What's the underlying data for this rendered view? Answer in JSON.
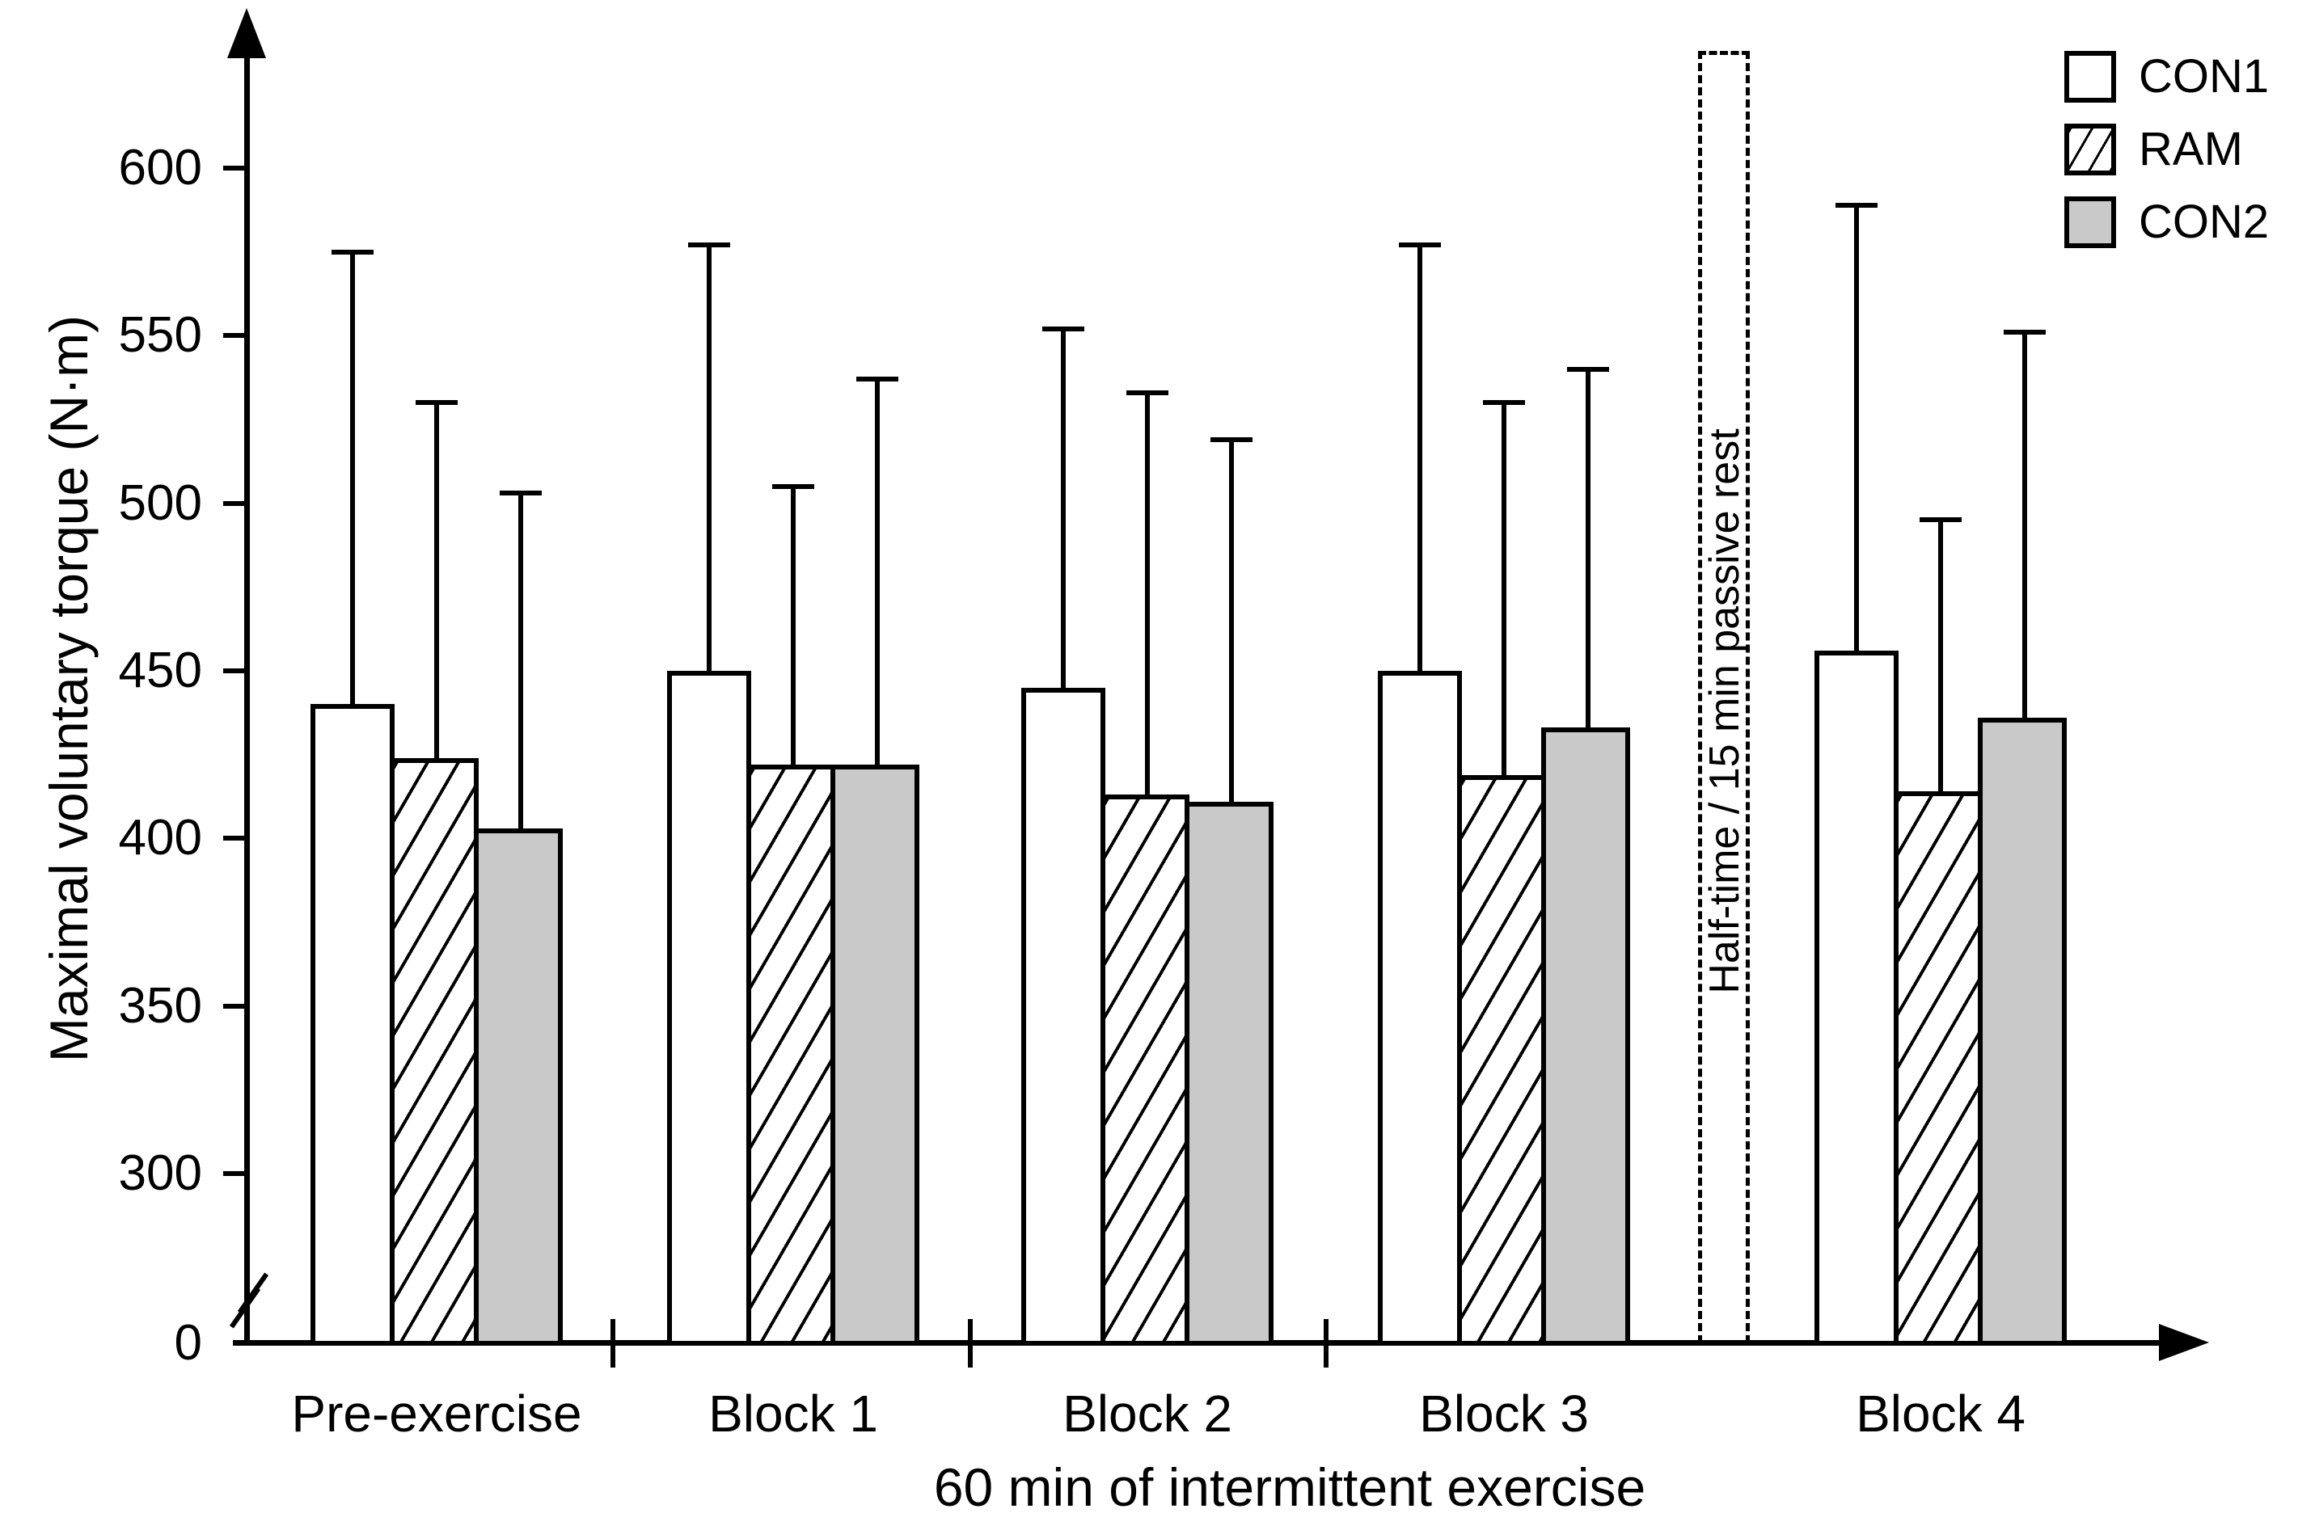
{
  "figure": {
    "y_axis": {
      "title": "Maximal voluntary torque (N·m)",
      "tick_labels": [
        "600",
        "550",
        "500",
        "450",
        "400",
        "350",
        "300"
      ],
      "zero_label": "0",
      "has_axis_break": true
    },
    "x_axis": {
      "title": "60 min of intermittent exercise",
      "categories": [
        "Pre-exercise",
        "Block 1",
        "Block 2",
        "Block 3",
        "Block 4"
      ]
    },
    "legend": [
      {
        "label": "CON1",
        "style": "white"
      },
      {
        "label": "RAM",
        "style": "hatched"
      },
      {
        "label": "CON2",
        "style": "gray"
      }
    ],
    "annotation": {
      "half_time_label": "Half-time / 15 min passive rest"
    },
    "colors": {
      "ink": "#000000",
      "con2_gray": "#c9c9c9",
      "background": "#ffffff"
    }
  },
  "chart_data": {
    "type": "bar",
    "title": "",
    "xlabel": "60 min of intermittent exercise",
    "ylabel": "Maximal voluntary torque (N·m)",
    "categories": [
      "Pre-exercise",
      "Block 1",
      "Block 2",
      "Block 3",
      "Block 4"
    ],
    "series": [
      {
        "name": "CON1",
        "style": "white",
        "values": [
          440,
          450,
          445,
          450,
          456
        ],
        "error_upper_tops": [
          575,
          577,
          552,
          577,
          589
        ]
      },
      {
        "name": "RAM",
        "style": "hatched",
        "values": [
          424,
          422,
          413,
          419,
          414
        ],
        "error_upper_tops": [
          530,
          505,
          533,
          530,
          495
        ]
      },
      {
        "name": "CON2",
        "style": "gray",
        "values": [
          403,
          422,
          411,
          433,
          436
        ],
        "error_upper_tops": [
          503,
          537,
          519,
          540,
          551
        ]
      }
    ],
    "y_ticks": [
      600,
      550,
      500,
      450,
      400,
      350,
      300
    ],
    "y_baseline": 0,
    "y_break_between": [
      0,
      300
    ],
    "ylim": [
      0,
      640
    ],
    "grid": false,
    "legend_position": "top-right",
    "annotation": "Half-time / 15 min passive rest between Block 3 and Block 4",
    "error_bars": "upper SD whiskers only"
  }
}
